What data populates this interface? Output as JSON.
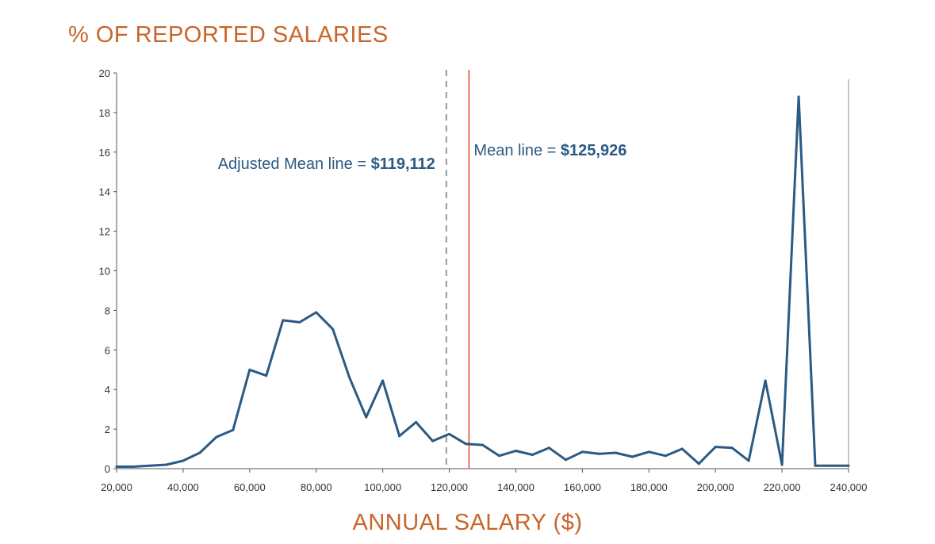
{
  "chart_data": {
    "type": "line",
    "ylabel": "% OF REPORTED SALARIES",
    "xlabel": "ANNUAL SALARY ($)",
    "xlim": [
      20000,
      240000
    ],
    "ylim": [
      0,
      20
    ],
    "x_ticks": [
      "20,000",
      "40,000",
      "60,000",
      "80,000",
      "100,000",
      "120,000",
      "140,000",
      "160,000",
      "180,000",
      "200,000",
      "220,000",
      "240,000"
    ],
    "y_ticks": [
      "0",
      "2",
      "4",
      "6",
      "8",
      "10",
      "12",
      "14",
      "16",
      "18",
      "20"
    ],
    "line_color": "#2b5a84",
    "series": [
      {
        "x": [
          20000,
          25000,
          30000,
          35000,
          40000,
          45000,
          50000,
          55000,
          60000,
          65000,
          70000,
          75000,
          80000,
          85000,
          90000,
          95000,
          100000,
          105000,
          110000,
          115000,
          120000,
          125000,
          130000,
          135000,
          140000,
          145000,
          150000,
          155000,
          160000,
          165000,
          170000,
          175000,
          180000,
          185000,
          190000,
          195000,
          200000,
          205000,
          210000,
          215000,
          220000,
          225000,
          230000,
          235000,
          240000
        ],
        "y": [
          0.1,
          0.1,
          0.15,
          0.2,
          0.4,
          0.8,
          1.6,
          1.95,
          5.0,
          4.7,
          7.5,
          7.4,
          7.9,
          7.05,
          4.6,
          2.6,
          4.45,
          1.65,
          2.35,
          1.4,
          1.75,
          1.25,
          1.2,
          0.65,
          0.9,
          0.7,
          1.05,
          0.45,
          0.85,
          0.75,
          0.8,
          0.6,
          0.85,
          0.65,
          1.0,
          0.25,
          1.1,
          1.05,
          0.4,
          4.45,
          0.2,
          18.8,
          0.15,
          0.15,
          0.15
        ]
      }
    ],
    "reference_lines": [
      {
        "x": 119112,
        "style": "dashed",
        "color": "#999999",
        "label": "Adjusted Mean line = ",
        "value_label": "$119,112"
      },
      {
        "x": 125926,
        "style": "solid",
        "color": "#e0452a",
        "label": "Mean line = ",
        "value_label": "$125,926"
      }
    ],
    "grid": false
  }
}
